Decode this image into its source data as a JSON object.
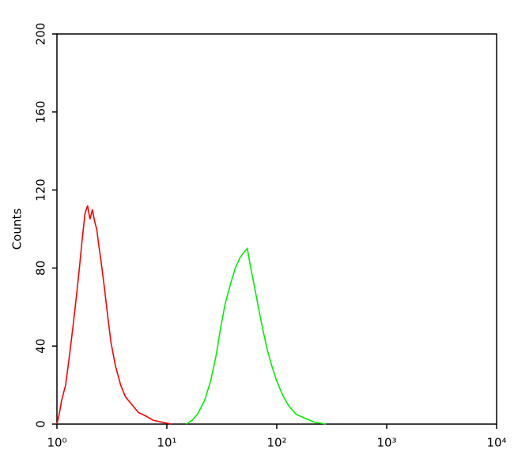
{
  "chart_data": {
    "type": "line",
    "y_label": "Counts",
    "xscale": "log",
    "xlim": [
      1,
      10000
    ],
    "xticks": [
      {
        "value": 1,
        "label": "10⁰"
      },
      {
        "value": 10,
        "label": "10¹"
      },
      {
        "value": 100,
        "label": "10²"
      },
      {
        "value": 1000,
        "label": "10³"
      },
      {
        "value": 10000,
        "label": "10⁴"
      }
    ],
    "ylim": [
      0,
      200
    ],
    "yticks": [
      0,
      40,
      80,
      120,
      160,
      200
    ],
    "series": [
      {
        "color": "#ff0000",
        "x": [
          1.0,
          1.05,
          1.1,
          1.2,
          1.3,
          1.4,
          1.5,
          1.6,
          1.7,
          1.8,
          1.9,
          2.0,
          2.1,
          2.2,
          2.3,
          2.4,
          2.5,
          2.7,
          2.9,
          3.1,
          3.4,
          3.8,
          4.2,
          4.8,
          5.5,
          6.5,
          7.5,
          9,
          11
        ],
        "values": [
          0,
          5,
          12,
          20,
          35,
          50,
          65,
          80,
          95,
          108,
          112,
          105,
          110,
          104,
          100,
          92,
          85,
          70,
          55,
          42,
          30,
          20,
          14,
          10,
          6,
          4,
          2,
          1,
          0
        ]
      },
      {
        "color": "#00ee00",
        "x": [
          15,
          17,
          19,
          22,
          25,
          28,
          31,
          34,
          38,
          42,
          46,
          50,
          54,
          58,
          62,
          68,
          75,
          82,
          90,
          100,
          115,
          130,
          150,
          180,
          220,
          280
        ],
        "values": [
          0,
          2,
          5,
          12,
          22,
          35,
          50,
          62,
          72,
          80,
          85,
          88,
          90,
          80,
          72,
          60,
          48,
          38,
          30,
          22,
          14,
          9,
          5,
          3,
          1,
          0
        ]
      }
    ]
  }
}
